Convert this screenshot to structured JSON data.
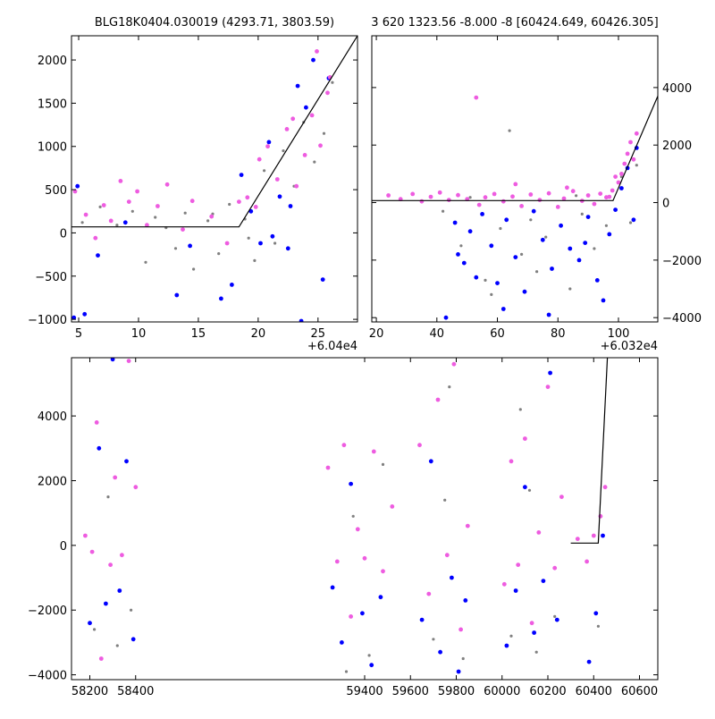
{
  "colors": {
    "gray": "#808080",
    "blue": "#0000ff",
    "magenta": "#ee5ce0",
    "model": "#000000"
  },
  "chart_data": [
    {
      "type": "scatter",
      "title": "BLG18K0404.030019 (4293.71, 3803.59)",
      "x_offset_label": "+6.04e4",
      "xlim": [
        4.4,
        28.3
      ],
      "ylim": [
        -1030,
        2280
      ],
      "xticks": [
        5,
        10,
        15,
        20,
        25
      ],
      "yticks": [
        -1000,
        -500,
        0,
        500,
        1000,
        1500,
        2000
      ],
      "yaxis_side": "left",
      "model_line": [
        [
          4.4,
          70
        ],
        [
          18.4,
          70
        ],
        [
          28.3,
          2280
        ]
      ],
      "series": [
        {
          "color_key": "gray",
          "points": [
            [
              5.3,
              120
            ],
            [
              6.8,
              300
            ],
            [
              8.2,
              90
            ],
            [
              9.5,
              250
            ],
            [
              10.6,
              -340
            ],
            [
              11.4,
              180
            ],
            [
              12.3,
              60
            ],
            [
              13.1,
              -180
            ],
            [
              13.9,
              230
            ],
            [
              14.6,
              -420
            ],
            [
              15.8,
              140
            ],
            [
              16.7,
              -240
            ],
            [
              17.6,
              330
            ],
            [
              18.9,
              160
            ],
            [
              19.7,
              -320
            ],
            [
              20.5,
              720
            ],
            [
              21.4,
              -120
            ],
            [
              22.1,
              950
            ],
            [
              23.0,
              540
            ],
            [
              23.8,
              1280
            ],
            [
              24.7,
              820
            ],
            [
              25.5,
              1150
            ],
            [
              26.2,
              1740
            ],
            [
              16.2,
              220
            ],
            [
              19.2,
              -60
            ]
          ]
        },
        {
          "color_key": "blue",
          "points": [
            [
              4.6,
              -980
            ],
            [
              5.5,
              -940
            ],
            [
              4.9,
              540
            ],
            [
              6.6,
              -260
            ],
            [
              8.9,
              120
            ],
            [
              13.2,
              -720
            ],
            [
              14.3,
              -150
            ],
            [
              16.9,
              -760
            ],
            [
              17.8,
              -600
            ],
            [
              18.6,
              670
            ],
            [
              19.4,
              250
            ],
            [
              20.2,
              -120
            ],
            [
              21.2,
              -40
            ],
            [
              21.8,
              420
            ],
            [
              22.5,
              -180
            ],
            [
              23.3,
              1700
            ],
            [
              24.0,
              1450
            ],
            [
              24.6,
              2000
            ],
            [
              25.4,
              -540
            ],
            [
              25.9,
              1790
            ],
            [
              23.6,
              -1020
            ],
            [
              20.9,
              1050
            ],
            [
              22.7,
              310
            ]
          ]
        },
        {
          "color_key": "magenta",
          "points": [
            [
              4.7,
              480
            ],
            [
              5.6,
              210
            ],
            [
              6.4,
              -60
            ],
            [
              7.1,
              320
            ],
            [
              7.7,
              140
            ],
            [
              8.5,
              600
            ],
            [
              9.2,
              360
            ],
            [
              9.9,
              480
            ],
            [
              10.7,
              90
            ],
            [
              11.6,
              310
            ],
            [
              12.4,
              560
            ],
            [
              13.7,
              40
            ],
            [
              14.5,
              370
            ],
            [
              16.1,
              190
            ],
            [
              17.4,
              -120
            ],
            [
              18.4,
              360
            ],
            [
              19.1,
              410
            ],
            [
              20.1,
              850
            ],
            [
              20.8,
              1000
            ],
            [
              21.6,
              620
            ],
            [
              22.4,
              1200
            ],
            [
              23.2,
              540
            ],
            [
              23.9,
              900
            ],
            [
              24.5,
              1360
            ],
            [
              25.2,
              1010
            ],
            [
              25.8,
              1620
            ],
            [
              26.0,
              1800
            ],
            [
              24.9,
              2100
            ],
            [
              22.9,
              1320
            ],
            [
              19.8,
              300
            ]
          ]
        }
      ]
    },
    {
      "type": "scatter",
      "title": "3 620 1323.56 -8.000 -8 [60424.649, 60426.305]",
      "x_offset_label": "+6.032e4",
      "xlim": [
        18.5,
        113
      ],
      "ylim": [
        -4150,
        5800
      ],
      "xticks": [
        20,
        40,
        60,
        80,
        100
      ],
      "yticks": [
        -4000,
        -2000,
        0,
        2000,
        4000
      ],
      "yaxis_side": "right",
      "model_line": [
        [
          18.5,
          70
        ],
        [
          98.2,
          70
        ],
        [
          113,
          3700
        ]
      ],
      "series": [
        {
          "color_key": "gray",
          "points": [
            [
              42,
              -300
            ],
            [
              48,
              -1500
            ],
            [
              51,
              180
            ],
            [
              56,
              -2700
            ],
            [
              61,
              -900
            ],
            [
              64,
              2500
            ],
            [
              68,
              -1800
            ],
            [
              71,
              -600
            ],
            [
              76,
              -1200
            ],
            [
              80,
              -150
            ],
            [
              84,
              -3000
            ],
            [
              88,
              -400
            ],
            [
              92,
              -1600
            ],
            [
              96,
              -800
            ],
            [
              101,
              900
            ],
            [
              104,
              -700
            ],
            [
              106,
              1300
            ],
            [
              58,
              -3200
            ],
            [
              73,
              -2400
            ],
            [
              86,
              240
            ]
          ]
        },
        {
          "color_key": "blue",
          "points": [
            [
              43,
              -4000
            ],
            [
              46,
              -700
            ],
            [
              49,
              -2100
            ],
            [
              51,
              -1000
            ],
            [
              53,
              -2600
            ],
            [
              55,
              -400
            ],
            [
              58,
              -1500
            ],
            [
              60,
              -2800
            ],
            [
              63,
              -600
            ],
            [
              66,
              -1900
            ],
            [
              69,
              -3100
            ],
            [
              72,
              -300
            ],
            [
              75,
              -1300
            ],
            [
              78,
              -2300
            ],
            [
              81,
              -800
            ],
            [
              84,
              -1600
            ],
            [
              87,
              -2000
            ],
            [
              90,
              -500
            ],
            [
              93,
              -2700
            ],
            [
              95,
              -3400
            ],
            [
              97,
              -1100
            ],
            [
              99,
              -250
            ],
            [
              101,
              500
            ],
            [
              103,
              1200
            ],
            [
              105,
              -600
            ],
            [
              106,
              1900
            ],
            [
              47,
              -1800
            ],
            [
              62,
              -3700
            ],
            [
              77,
              -3900
            ],
            [
              89,
              -1400
            ]
          ]
        },
        {
          "color_key": "magenta",
          "points": [
            [
              24,
              250
            ],
            [
              28,
              120
            ],
            [
              32,
              300
            ],
            [
              35,
              40
            ],
            [
              38,
              200
            ],
            [
              41,
              350
            ],
            [
              44,
              90
            ],
            [
              47,
              260
            ],
            [
              50,
              120
            ],
            [
              53,
              3650
            ],
            [
              54,
              -80
            ],
            [
              56,
              180
            ],
            [
              59,
              300
            ],
            [
              62,
              40
            ],
            [
              65,
              210
            ],
            [
              68,
              -120
            ],
            [
              71,
              280
            ],
            [
              74,
              90
            ],
            [
              77,
              320
            ],
            [
              80,
              -150
            ],
            [
              82,
              140
            ],
            [
              85,
              400
            ],
            [
              88,
              60
            ],
            [
              90,
              250
            ],
            [
              92,
              -50
            ],
            [
              94,
              310
            ],
            [
              96,
              180
            ],
            [
              98,
              420
            ],
            [
              100,
              700
            ],
            [
              101,
              1000
            ],
            [
              102,
              1350
            ],
            [
              103,
              1700
            ],
            [
              104,
              2100
            ],
            [
              105,
              1500
            ],
            [
              106,
              2400
            ],
            [
              99,
              900
            ],
            [
              97,
              200
            ],
            [
              83,
              520
            ],
            [
              66,
              640
            ]
          ]
        }
      ]
    },
    {
      "type": "scatter",
      "title": "",
      "xlim": [
        58120,
        60680
      ],
      "ylim": [
        -4150,
        5800
      ],
      "xticks": [
        58200,
        58400,
        59400,
        59600,
        59800,
        60000,
        60200,
        60400,
        60600
      ],
      "yticks": [
        -4000,
        -2000,
        0,
        2000,
        4000
      ],
      "yaxis_side": "left",
      "model_line": [
        [
          60300,
          70
        ],
        [
          60420,
          70
        ],
        [
          60460,
          5800
        ]
      ],
      "series": [
        {
          "color_key": "gray",
          "points": [
            [
              58220,
              -2600
            ],
            [
              58320,
              -3100
            ],
            [
              58380,
              -2000
            ],
            [
              59320,
              -3900
            ],
            [
              59420,
              -3400
            ],
            [
              59480,
              2500
            ],
            [
              59700,
              -2900
            ],
            [
              59770,
              4900
            ],
            [
              59830,
              -3500
            ],
            [
              60040,
              -2800
            ],
            [
              60080,
              4200
            ],
            [
              60150,
              -3300
            ],
            [
              60230,
              -2200
            ],
            [
              60420,
              -2500
            ],
            [
              58280,
              1500
            ],
            [
              59350,
              900
            ],
            [
              59750,
              1400
            ],
            [
              60120,
              1700
            ]
          ]
        },
        {
          "color_key": "blue",
          "points": [
            [
              58200,
              -2400
            ],
            [
              58240,
              3000
            ],
            [
              58270,
              -1800
            ],
            [
              58300,
              5750
            ],
            [
              58330,
              -1400
            ],
            [
              58360,
              2600
            ],
            [
              58390,
              -2900
            ],
            [
              59260,
              -1300
            ],
            [
              59300,
              -3000
            ],
            [
              59340,
              1900
            ],
            [
              59390,
              -2100
            ],
            [
              59430,
              -3700
            ],
            [
              59470,
              -1600
            ],
            [
              59650,
              -2300
            ],
            [
              59690,
              2600
            ],
            [
              59730,
              -3300
            ],
            [
              59780,
              -1000
            ],
            [
              59810,
              -3900
            ],
            [
              59840,
              -1700
            ],
            [
              60020,
              -3100
            ],
            [
              60060,
              -1400
            ],
            [
              60100,
              1800
            ],
            [
              60140,
              -2700
            ],
            [
              60180,
              -1100
            ],
            [
              60210,
              5330
            ],
            [
              60240,
              -2300
            ],
            [
              60380,
              -3600
            ],
            [
              60410,
              -2100
            ],
            [
              60440,
              300
            ]
          ]
        },
        {
          "color_key": "magenta",
          "points": [
            [
              58180,
              300
            ],
            [
              58210,
              -200
            ],
            [
              58230,
              3800
            ],
            [
              58250,
              -3500
            ],
            [
              58290,
              -600
            ],
            [
              58310,
              2100
            ],
            [
              58340,
              -300
            ],
            [
              58370,
              5700
            ],
            [
              58400,
              1800
            ],
            [
              59240,
              2400
            ],
            [
              59280,
              -500
            ],
            [
              59310,
              3100
            ],
            [
              59340,
              -2200
            ],
            [
              59370,
              500
            ],
            [
              59400,
              -400
            ],
            [
              59440,
              2900
            ],
            [
              59480,
              -800
            ],
            [
              59520,
              1200
            ],
            [
              59640,
              3100
            ],
            [
              59680,
              -1500
            ],
            [
              59720,
              4500
            ],
            [
              59760,
              -300
            ],
            [
              59790,
              5600
            ],
            [
              59820,
              -2600
            ],
            [
              59850,
              600
            ],
            [
              60010,
              -1200
            ],
            [
              60040,
              2600
            ],
            [
              60070,
              -600
            ],
            [
              60100,
              3300
            ],
            [
              60130,
              -2400
            ],
            [
              60160,
              400
            ],
            [
              60200,
              4900
            ],
            [
              60230,
              -700
            ],
            [
              60260,
              1500
            ],
            [
              60330,
              200
            ],
            [
              60370,
              -500
            ],
            [
              60400,
              300
            ],
            [
              60430,
              900
            ],
            [
              60450,
              1800
            ]
          ]
        }
      ]
    }
  ]
}
